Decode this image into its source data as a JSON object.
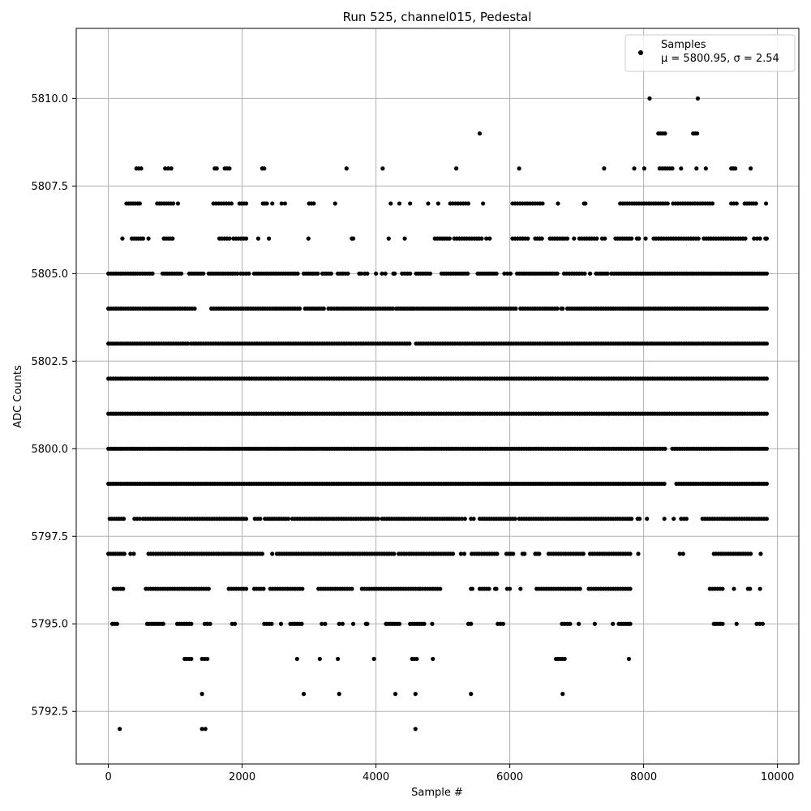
{
  "chart_data": {
    "type": "scatter",
    "title": "Run 525, channel015, Pedestal",
    "xlabel": "Sample #",
    "ylabel": "ADC Counts",
    "xlim": [
      -480,
      10320
    ],
    "ylim": [
      5791.0,
      5812.0
    ],
    "xticks": [
      0,
      2000,
      4000,
      6000,
      8000,
      10000
    ],
    "xtick_labels": [
      "0",
      "2000",
      "4000",
      "6000",
      "8000",
      "10000"
    ],
    "yticks": [
      5792.5,
      5795.0,
      5797.5,
      5800.0,
      5802.5,
      5805.0,
      5807.5,
      5810.0
    ],
    "ytick_labels": [
      "5792.5",
      "5795.0",
      "5797.5",
      "5800.0",
      "5802.5",
      "5805.0",
      "5807.5",
      "5810.0"
    ],
    "grid": true,
    "legend_position": "top-right",
    "series": [
      {
        "name": "Samples",
        "stats_label": "μ = 5800.95, σ = 2.54",
        "color": "#000000",
        "marker": "circle",
        "levels": [
          {
            "y": 5792,
            "segments": [
              [
                170,
                175
              ],
              [
                1400,
                1450
              ],
              [
                4590,
                4600
              ]
            ]
          },
          {
            "y": 5793,
            "segments": [
              [
                1400,
                1400
              ],
              [
                2920,
                2920
              ],
              [
                3450,
                3450
              ],
              [
                4290,
                4290
              ],
              [
                4590,
                4590
              ],
              [
                5420,
                5420
              ],
              [
                6790,
                6790
              ]
            ]
          },
          {
            "y": 5794,
            "segments": [
              [
                1140,
                1240
              ],
              [
                1400,
                1480
              ],
              [
                2820,
                2820
              ],
              [
                3160,
                3160
              ],
              [
                3430,
                3430
              ],
              [
                3970,
                3970
              ],
              [
                4540,
                4610
              ],
              [
                4850,
                4850
              ],
              [
                6690,
                6820
              ],
              [
                7780,
                7780
              ]
            ]
          },
          {
            "y": 5795,
            "segments": [
              [
                60,
                130
              ],
              [
                580,
                820
              ],
              [
                1030,
                1240
              ],
              [
                1440,
                1520
              ],
              [
                1850,
                1890
              ],
              [
                2330,
                2440
              ],
              [
                2580,
                2580
              ],
              [
                2720,
                2890
              ],
              [
                3190,
                3240
              ],
              [
                3450,
                3500
              ],
              [
                3660,
                3660
              ],
              [
                3850,
                3870
              ],
              [
                4150,
                4350
              ],
              [
                4510,
                4720
              ],
              [
                4840,
                4840
              ],
              [
                5380,
                5420
              ],
              [
                5820,
                5900
              ],
              [
                6780,
                6900
              ],
              [
                7030,
                7030
              ],
              [
                7270,
                7270
              ],
              [
                7540,
                7540
              ],
              [
                7630,
                7800
              ],
              [
                9050,
                9180
              ],
              [
                9390,
                9390
              ],
              [
                9690,
                9780
              ]
            ]
          },
          {
            "y": 5796,
            "segments": [
              [
                80,
                220
              ],
              [
                560,
                1500
              ],
              [
                1800,
                2060
              ],
              [
                2180,
                2320
              ],
              [
                2420,
                2900
              ],
              [
                3140,
                3640
              ],
              [
                3790,
                4630
              ],
              [
                4660,
                4960
              ],
              [
                5420,
                5440
              ],
              [
                5550,
                5690
              ],
              [
                5780,
                5800
              ],
              [
                5960,
                6000
              ],
              [
                6160,
                6160
              ],
              [
                6400,
                7050
              ],
              [
                7180,
                7800
              ],
              [
                8990,
                9180
              ],
              [
                9350,
                9350
              ],
              [
                9560,
                9590
              ],
              [
                9740,
                9740
              ]
            ]
          },
          {
            "y": 5797,
            "segments": [
              [
                0,
                240
              ],
              [
                330,
                380
              ],
              [
                600,
                2300
              ],
              [
                2450,
                2450
              ],
              [
                2520,
                4270
              ],
              [
                4340,
                4830
              ],
              [
                4860,
                5150
              ],
              [
                5270,
                5320
              ],
              [
                5430,
                5810
              ],
              [
                5950,
                6050
              ],
              [
                6190,
                6220
              ],
              [
                6380,
                6440
              ],
              [
                6580,
                7100
              ],
              [
                7200,
                7800
              ],
              [
                7920,
                7920
              ],
              [
                8540,
                8590
              ],
              [
                9050,
                9600
              ],
              [
                9750,
                9760
              ]
            ]
          },
          {
            "y": 5798,
            "segments": [
              [
                20,
                230
              ],
              [
                390,
                470
              ],
              [
                520,
                2060
              ],
              [
                2190,
                2270
              ],
              [
                2340,
                2690
              ],
              [
                2750,
                4030
              ],
              [
                4090,
                5200
              ],
              [
                5240,
                5330
              ],
              [
                5420,
                5460
              ],
              [
                5550,
                6080
              ],
              [
                6140,
                7760
              ],
              [
                7790,
                7820
              ],
              [
                7910,
                7940
              ],
              [
                8050,
                8050
              ],
              [
                8310,
                8310
              ],
              [
                8450,
                8460
              ],
              [
                8560,
                8640
              ],
              [
                8880,
                9840
              ]
            ]
          },
          {
            "y": 5799,
            "segments": [
              [
                0,
                8310
              ],
              [
                8490,
                9840
              ]
            ]
          },
          {
            "y": 5800,
            "segments": [
              [
                0,
                8320
              ],
              [
                8430,
                9840
              ]
            ]
          },
          {
            "y": 5801,
            "segments": [
              [
                0,
                9840
              ]
            ]
          },
          {
            "y": 5802,
            "segments": [
              [
                0,
                9840
              ]
            ]
          },
          {
            "y": 5803,
            "segments": [
              [
                0,
                1190
              ],
              [
                1240,
                4500
              ],
              [
                4600,
                9840
              ]
            ]
          },
          {
            "y": 5804,
            "segments": [
              [
                0,
                1290
              ],
              [
                1540,
                2490
              ],
              [
                2510,
                2860
              ],
              [
                2940,
                3220
              ],
              [
                3290,
                3410
              ],
              [
                3440,
                4250
              ],
              [
                4300,
                4540
              ],
              [
                4570,
                6090
              ],
              [
                6160,
                6710
              ],
              [
                6770,
                6790
              ],
              [
                6860,
                7760
              ],
              [
                7780,
                9840
              ]
            ]
          },
          {
            "y": 5805,
            "segments": [
              [
                0,
                660
              ],
              [
                810,
                1090
              ],
              [
                1210,
                1420
              ],
              [
                1500,
                1930
              ],
              [
                1980,
                2100
              ],
              [
                2180,
                2830
              ],
              [
                2920,
                3130
              ],
              [
                3200,
                3330
              ],
              [
                3430,
                3580
              ],
              [
                3750,
                3780
              ],
              [
                3830,
                3870
              ],
              [
                4000,
                4000
              ],
              [
                4090,
                4140
              ],
              [
                4260,
                4280
              ],
              [
                4390,
                4510
              ],
              [
                4600,
                4810
              ],
              [
                4980,
                5370
              ],
              [
                5520,
                5800
              ],
              [
                5920,
                6010
              ],
              [
                6110,
                6710
              ],
              [
                6810,
                7080
              ],
              [
                7120,
                7120
              ],
              [
                7200,
                7210
              ],
              [
                7290,
                7460
              ],
              [
                7520,
                9840
              ]
            ]
          },
          {
            "y": 5806,
            "segments": [
              [
                210,
                210
              ],
              [
                350,
                520
              ],
              [
                600,
                600
              ],
              [
                830,
                960
              ],
              [
                1660,
                1810
              ],
              [
                1870,
                2060
              ],
              [
                2240,
                2240
              ],
              [
                2400,
                2400
              ],
              [
                2990,
                2990
              ],
              [
                3640,
                3660
              ],
              [
                4190,
                4190
              ],
              [
                4430,
                4430
              ],
              [
                4880,
                5100
              ],
              [
                5170,
                5580
              ],
              [
                5650,
                5700
              ],
              [
                6040,
                6270
              ],
              [
                6380,
                6480
              ],
              [
                6600,
                6860
              ],
              [
                6960,
                6960
              ],
              [
                7040,
                7300
              ],
              [
                7380,
                7420
              ],
              [
                7580,
                7820
              ],
              [
                7900,
                7930
              ],
              [
                8030,
                8040
              ],
              [
                8150,
                8820
              ],
              [
                8900,
                9520
              ],
              [
                9650,
                9740
              ],
              [
                9820,
                9840
              ]
            ]
          },
          {
            "y": 5807,
            "segments": [
              [
                270,
                470
              ],
              [
                730,
                970
              ],
              [
                1040,
                1040
              ],
              [
                1570,
                1840
              ],
              [
                1960,
                2060
              ],
              [
                2310,
                2370
              ],
              [
                2450,
                2450
              ],
              [
                2590,
                2640
              ],
              [
                3000,
                3070
              ],
              [
                3390,
                3390
              ],
              [
                4220,
                4220
              ],
              [
                4350,
                4350
              ],
              [
                4510,
                4510
              ],
              [
                4780,
                4780
              ],
              [
                4930,
                4930
              ],
              [
                5110,
                5380
              ],
              [
                5600,
                5600
              ],
              [
                6040,
                6490
              ],
              [
                6720,
                6720
              ],
              [
                7110,
                7130
              ],
              [
                7650,
                8360
              ],
              [
                8440,
                9030
              ],
              [
                9310,
                9390
              ],
              [
                9510,
                9680
              ],
              [
                9830,
                9840
              ]
            ]
          },
          {
            "y": 5808,
            "segments": [
              [
                420,
                490
              ],
              [
                850,
                940
              ],
              [
                1590,
                1620
              ],
              [
                1740,
                1810
              ],
              [
                2300,
                2330
              ],
              [
                3560,
                3560
              ],
              [
                4100,
                4100
              ],
              [
                5200,
                5200
              ],
              [
                6140,
                6140
              ],
              [
                7410,
                7410
              ],
              [
                7860,
                7860
              ],
              [
                8010,
                8010
              ],
              [
                8240,
                8430
              ],
              [
                8560,
                8560
              ],
              [
                8790,
                8790
              ],
              [
                8930,
                8930
              ],
              [
                9310,
                9370
              ],
              [
                9600,
                9600
              ]
            ]
          },
          {
            "y": 5809,
            "segments": [
              [
                5550,
                5550
              ],
              [
                8220,
                8320
              ],
              [
                8740,
                8800
              ]
            ]
          },
          {
            "y": 5810,
            "segments": [
              [
                8090,
                8090
              ],
              [
                8810,
                8810
              ]
            ]
          }
        ]
      }
    ]
  }
}
